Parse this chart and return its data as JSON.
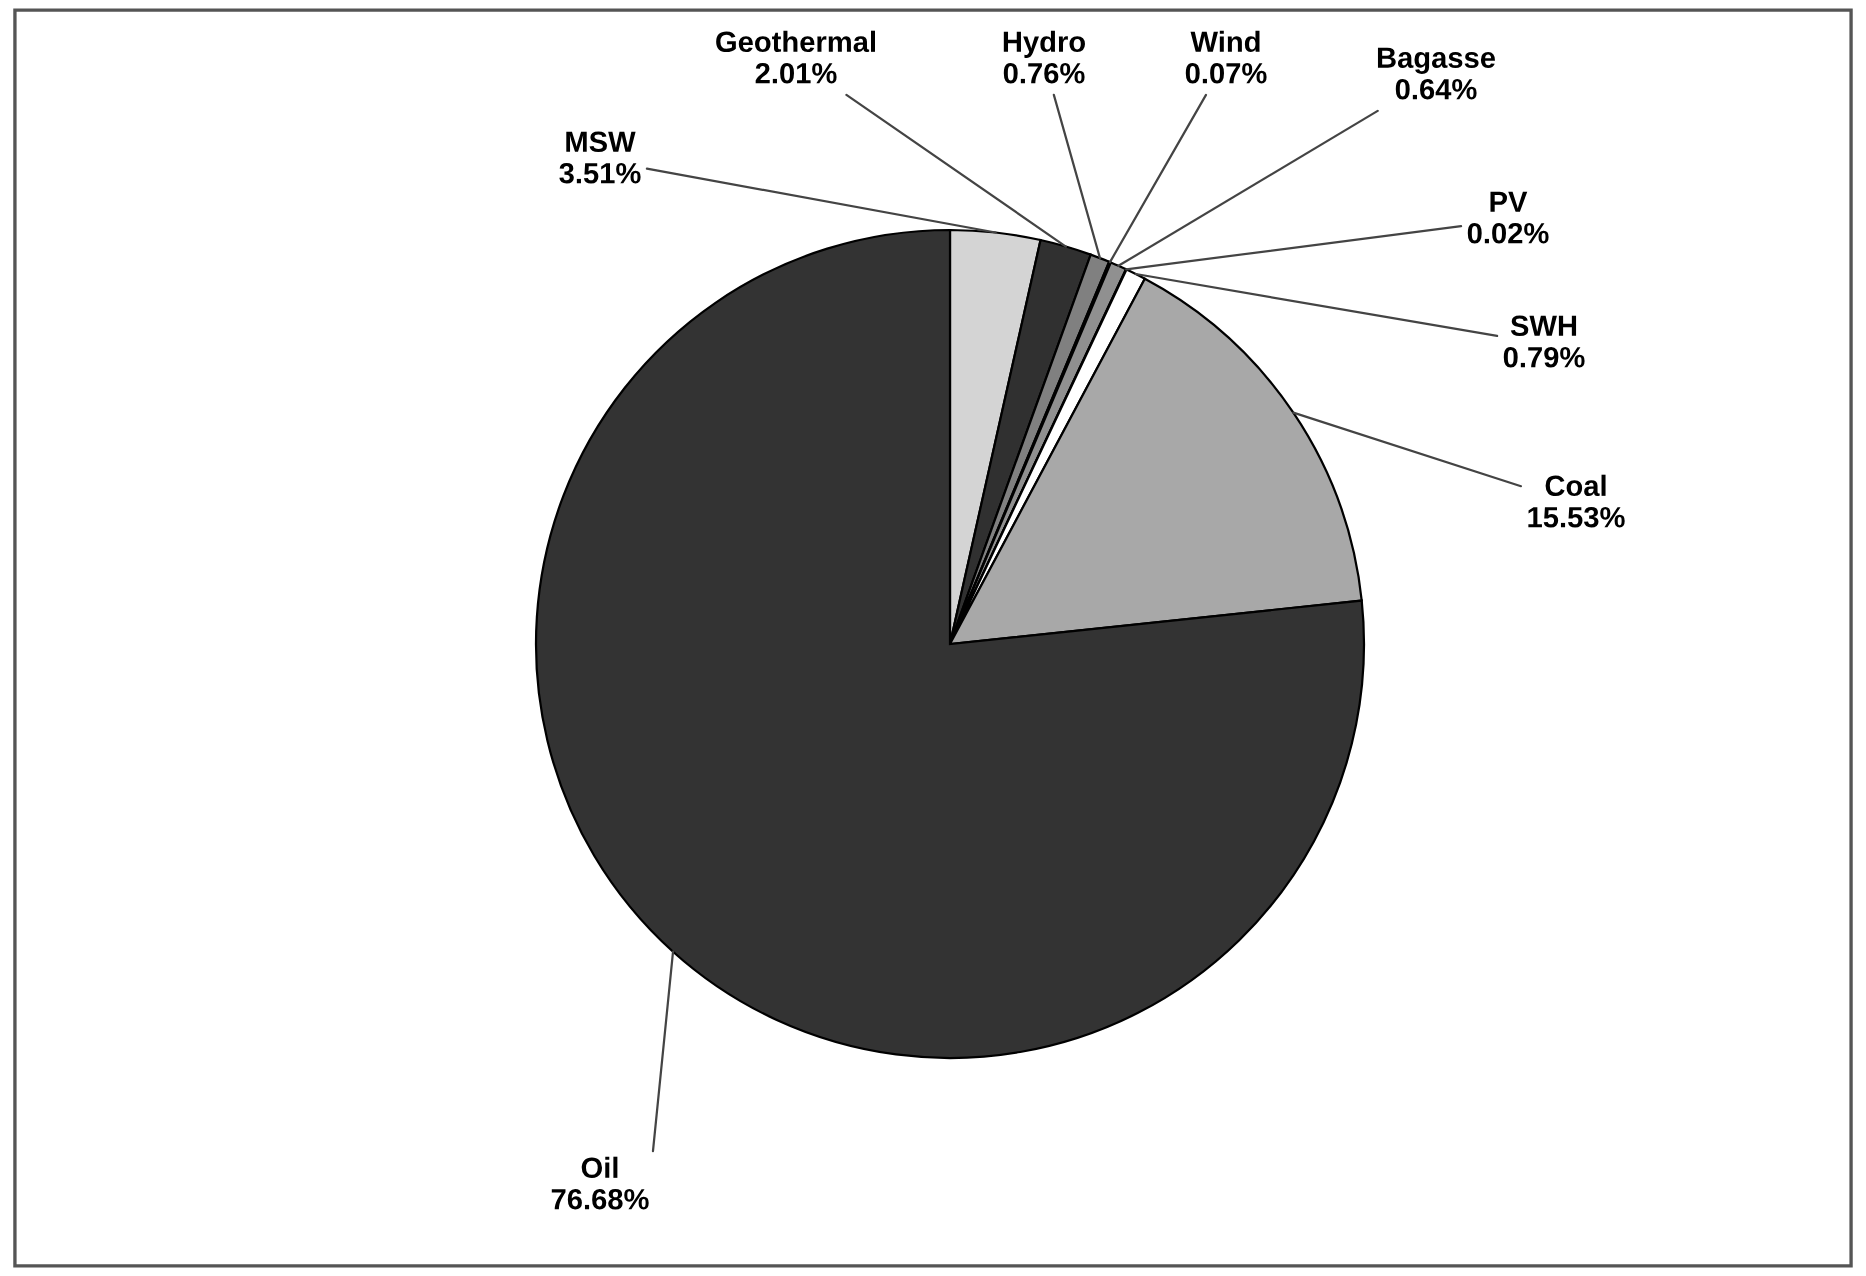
{
  "chart_data": {
    "type": "pie",
    "categories": [
      "MSW",
      "Geothermal",
      "Hydro",
      "Wind",
      "Bagasse",
      "PV",
      "SWH",
      "Coal",
      "Oil"
    ],
    "values": [
      3.51,
      2.01,
      0.76,
      0.07,
      0.64,
      0.02,
      0.79,
      15.53,
      76.68
    ],
    "value_labels": [
      "3.51%",
      "2.01%",
      "0.76%",
      "0.07%",
      "0.64%",
      "0.02%",
      "0.79%",
      "15.53%",
      "76.68%"
    ],
    "colors": [
      "#d4d4d4",
      "#303030",
      "#808080",
      "#505050",
      "#909090",
      "#606060",
      "#ffffff",
      "#a8a8a8",
      "#333333"
    ]
  }
}
